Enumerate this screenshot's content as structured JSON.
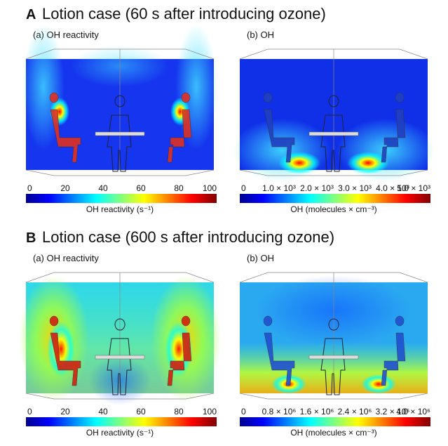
{
  "panels": [
    {
      "label": "A",
      "title": "Lotion case (60 s after introducing ozone)",
      "subplots": [
        {
          "title": "(a) OH reactivity",
          "colorbar": {
            "ticks": [
              "0",
              "20",
              "40",
              "60",
              "80",
              "100"
            ],
            "label": "OH reactivity (s⁻¹)"
          }
        },
        {
          "title": "(b) OH",
          "colorbar": {
            "ticks": [
              "0",
              "1.0 × 10³",
              "2.0 × 10³",
              "3.0 × 10³",
              "4.0 × 10³",
              "5.0 × 10³"
            ],
            "label": "OH (molecules × cm⁻³)"
          }
        }
      ]
    },
    {
      "label": "B",
      "title": "Lotion case (600 s after introducing ozone)",
      "subplots": [
        {
          "title": "(a) OH reactivity",
          "colorbar": {
            "ticks": [
              "0",
              "20",
              "40",
              "60",
              "80",
              "100"
            ],
            "label": "OH reactivity (s⁻¹)"
          }
        },
        {
          "title": "(b) OH",
          "colorbar": {
            "ticks": [
              "0",
              "0.8 × 10⁶",
              "1.6 × 10⁶",
              "2.4 × 10⁶",
              "3.2 × 10⁶",
              "4.0 × 10⁶"
            ],
            "label": "OH (molecules × cm⁻³)"
          }
        }
      ]
    }
  ]
}
